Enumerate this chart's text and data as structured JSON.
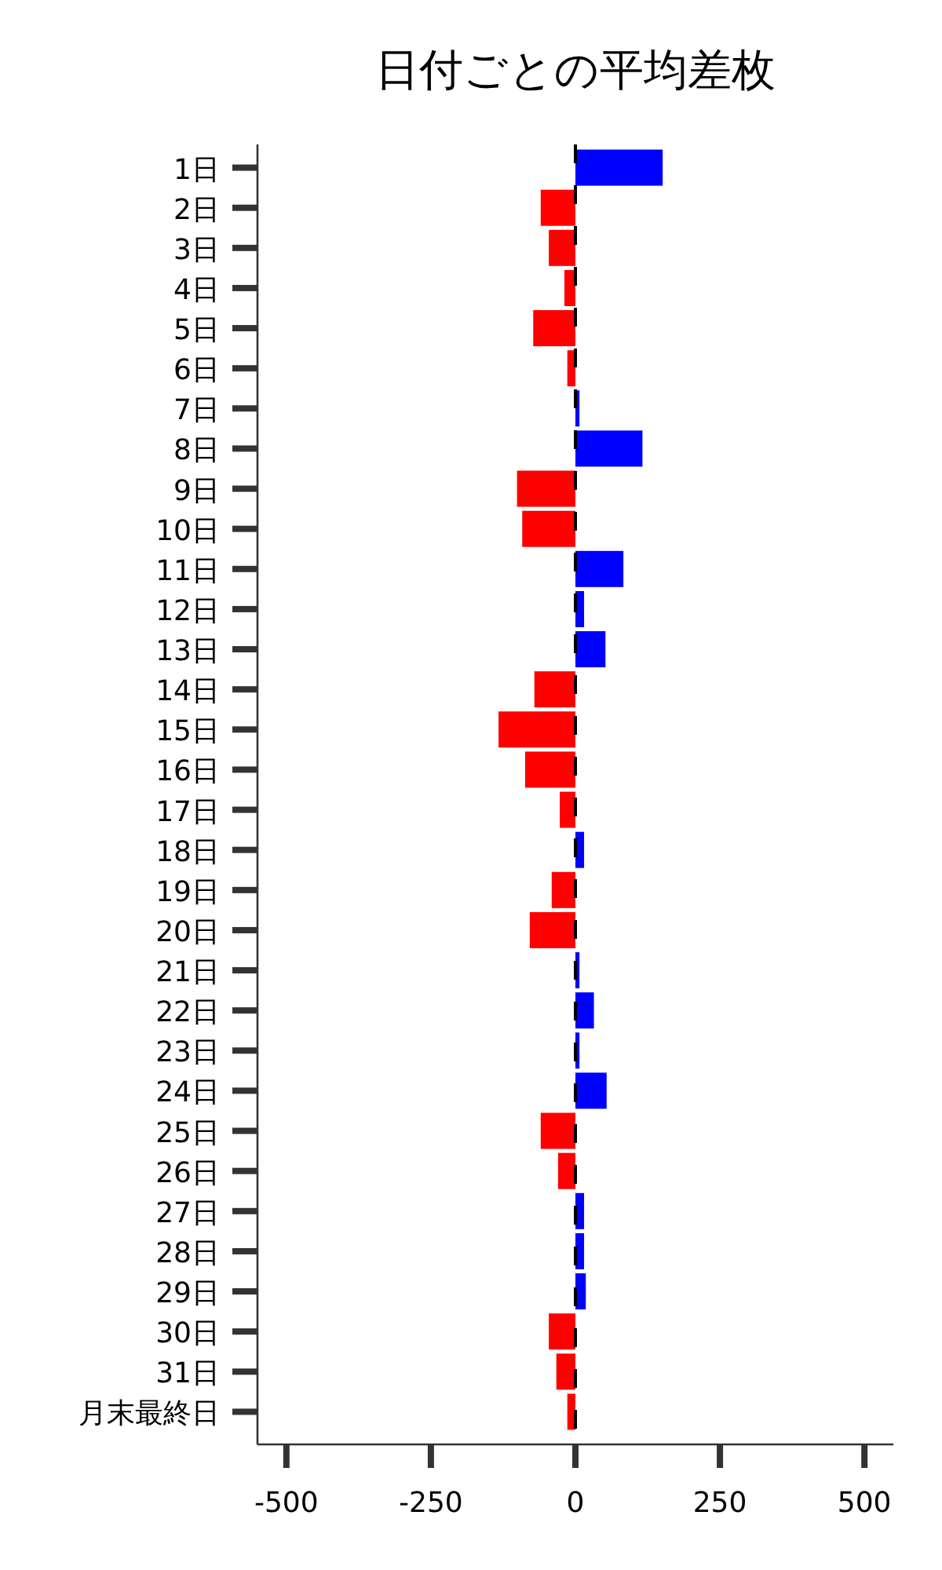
{
  "chart_data": {
    "type": "bar",
    "orientation": "horizontal",
    "title": "日付ごとの平均差枚",
    "categories": [
      "1日",
      "2日",
      "3日",
      "4日",
      "5日",
      "6日",
      "7日",
      "8日",
      "9日",
      "10日",
      "11日",
      "12日",
      "13日",
      "14日",
      "15日",
      "16日",
      "17日",
      "18日",
      "19日",
      "20日",
      "21日",
      "22日",
      "23日",
      "24日",
      "25日",
      "26日",
      "27日",
      "28日",
      "29日",
      "30日",
      "31日",
      "月末最終日"
    ],
    "values": [
      151,
      -60,
      -46,
      -19,
      -73,
      -14,
      7,
      116,
      -101,
      -92,
      83,
      15,
      52,
      -71,
      -133,
      -87,
      -27,
      15,
      -41,
      -79,
      7,
      32,
      7,
      54,
      -60,
      -30,
      15,
      15,
      18,
      -46,
      -33,
      -14
    ],
    "colors": [
      "#0000ff",
      "#ff0000",
      "#ff0000",
      "#ff0000",
      "#ff0000",
      "#ff0000",
      "#0000ff",
      "#0000ff",
      "#ff0000",
      "#ff0000",
      "#0000ff",
      "#0000ff",
      "#0000ff",
      "#ff0000",
      "#ff0000",
      "#ff0000",
      "#ff0000",
      "#0000ff",
      "#ff0000",
      "#ff0000",
      "#0000ff",
      "#0000ff",
      "#0000ff",
      "#0000ff",
      "#ff0000",
      "#ff0000",
      "#0000ff",
      "#0000ff",
      "#0000ff",
      "#ff0000",
      "#ff0000",
      "#ff0000"
    ],
    "xlim": [
      -550,
      550
    ],
    "xticks": [
      -500,
      -250,
      0,
      250,
      500
    ],
    "ref_lines": [
      {
        "axis": "x",
        "value": 0,
        "color": "#000000",
        "line_style": "dashed"
      }
    ],
    "grid": false
  }
}
